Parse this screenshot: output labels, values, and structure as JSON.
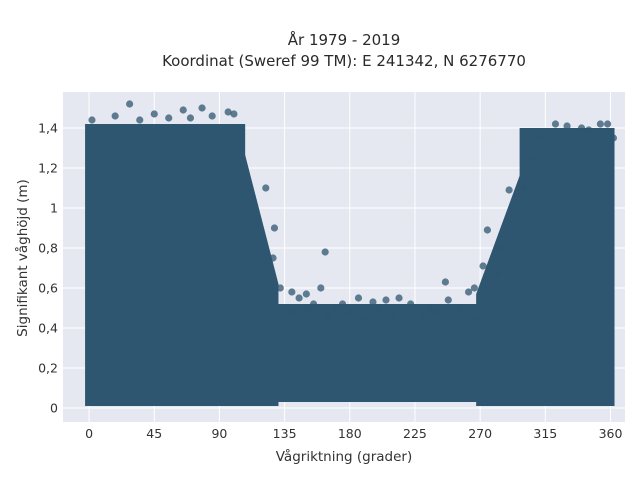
{
  "chart_data": {
    "type": "scatter",
    "title_line1": "År 1979 - 2019",
    "title_line2": "Koordinat (Sweref 99 TM): E 241342, N 6276770",
    "xlabel": "Vågriktning (grader)",
    "ylabel": "Signifikant våghöjd (m)",
    "xlim": [
      -18,
      370
    ],
    "ylim": [
      -0.07,
      1.58
    ],
    "xticks": [
      0,
      45,
      90,
      135,
      180,
      225,
      270,
      315,
      360
    ],
    "yticks": [
      0,
      0.2,
      0.4,
      0.6,
      0.8,
      1,
      1.2,
      1.4
    ],
    "ytick_labels": [
      "0",
      "0,2",
      "0,4",
      "0,6",
      "0,8",
      "1",
      "1,2",
      "1,4"
    ],
    "grid": true,
    "marker_color": "#2f5670",
    "background_color": "#e5e8f0",
    "dense_bands": [
      {
        "x_start": 0,
        "x_end": 105,
        "y_min": 0.03,
        "y_max": 1.4
      },
      {
        "x_start": 105,
        "x_end": 128,
        "y_min": 0.03,
        "y_max_start": 1.4,
        "y_max_end": 0.6
      },
      {
        "x_start": 128,
        "x_end": 270,
        "y_min": 0.05,
        "y_max": 0.5
      },
      {
        "x_start": 270,
        "x_end": 300,
        "y_min": 0.03,
        "y_max_start": 0.55,
        "y_max_end": 1.25
      },
      {
        "x_start": 300,
        "x_end": 360,
        "y_min": 0.03,
        "y_max": 1.38
      }
    ],
    "points": [
      {
        "x": 28,
        "y": 1.52
      },
      {
        "x": 78,
        "y": 1.5
      },
      {
        "x": 65,
        "y": 1.49
      },
      {
        "x": 96,
        "y": 1.48
      },
      {
        "x": 100,
        "y": 1.47
      },
      {
        "x": 18,
        "y": 1.46
      },
      {
        "x": 45,
        "y": 1.47
      },
      {
        "x": 85,
        "y": 1.46
      },
      {
        "x": 2,
        "y": 1.44
      },
      {
        "x": 55,
        "y": 1.45
      },
      {
        "x": 35,
        "y": 1.44
      },
      {
        "x": 70,
        "y": 1.45
      },
      {
        "x": 330,
        "y": 1.41
      },
      {
        "x": 340,
        "y": 1.4
      },
      {
        "x": 353,
        "y": 1.42
      },
      {
        "x": 358,
        "y": 1.42
      },
      {
        "x": 322,
        "y": 1.42
      },
      {
        "x": 345,
        "y": 1.39
      },
      {
        "x": 362,
        "y": 1.35
      },
      {
        "x": 312,
        "y": 1.35
      },
      {
        "x": 306,
        "y": 1.25
      },
      {
        "x": 290,
        "y": 1.09
      },
      {
        "x": 300,
        "y": 1.1
      },
      {
        "x": 292,
        "y": 0.92
      },
      {
        "x": 275,
        "y": 0.89
      },
      {
        "x": 285,
        "y": 0.8
      },
      {
        "x": 282,
        "y": 0.67
      },
      {
        "x": 272,
        "y": 0.71
      },
      {
        "x": 122,
        "y": 1.1
      },
      {
        "x": 128,
        "y": 0.9
      },
      {
        "x": 127,
        "y": 0.75
      },
      {
        "x": 163,
        "y": 0.78
      },
      {
        "x": 132,
        "y": 0.6
      },
      {
        "x": 140,
        "y": 0.58
      },
      {
        "x": 145,
        "y": 0.55
      },
      {
        "x": 150,
        "y": 0.57
      },
      {
        "x": 160,
        "y": 0.6
      },
      {
        "x": 155,
        "y": 0.52
      },
      {
        "x": 175,
        "y": 0.52
      },
      {
        "x": 186,
        "y": 0.55
      },
      {
        "x": 196,
        "y": 0.53
      },
      {
        "x": 205,
        "y": 0.54
      },
      {
        "x": 214,
        "y": 0.55
      },
      {
        "x": 222,
        "y": 0.52
      },
      {
        "x": 235,
        "y": 0.5
      },
      {
        "x": 246,
        "y": 0.63
      },
      {
        "x": 248,
        "y": 0.54
      },
      {
        "x": 256,
        "y": 0.5
      },
      {
        "x": 262,
        "y": 0.58
      },
      {
        "x": 266,
        "y": 0.6
      },
      {
        "x": 170,
        "y": 0.5
      },
      {
        "x": 200,
        "y": 0.5
      },
      {
        "x": 180,
        "y": 0.48
      },
      {
        "x": 230,
        "y": 0.47
      },
      {
        "x": 268,
        "y": 0.45
      },
      {
        "x": 140,
        "y": 0.48
      },
      {
        "x": 150,
        "y": 0.49
      },
      {
        "x": 190,
        "y": 0.45
      },
      {
        "x": 210,
        "y": 0.46
      },
      {
        "x": 240,
        "y": 0.48
      },
      {
        "x": 165,
        "y": 0.46
      },
      {
        "x": 220,
        "y": 0.44
      }
    ]
  }
}
